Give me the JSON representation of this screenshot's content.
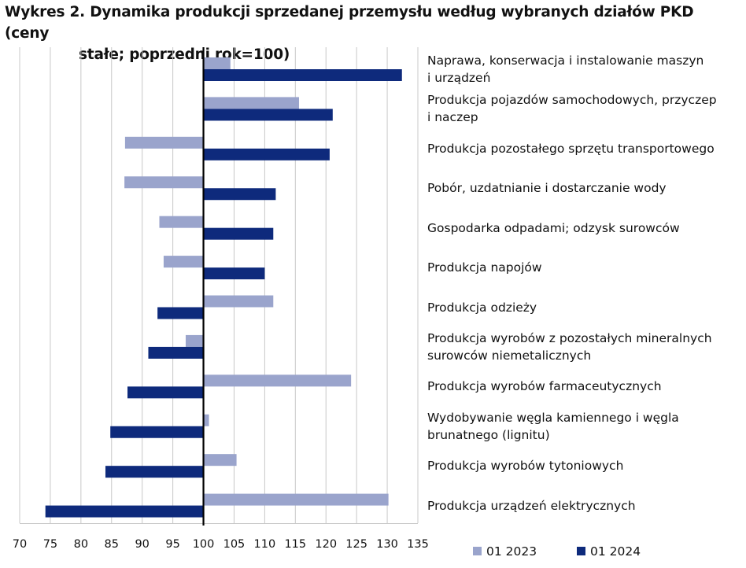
{
  "chart_data": {
    "type": "bar",
    "orientation": "horizontal",
    "title_line1": "Wykres 2. Dynamika produkcji sprzedanej przemysłu według wybranych działów PKD (ceny",
    "title_line2": "stałe; poprzedni rok=100)",
    "base_value": 100,
    "xlim": [
      70,
      135
    ],
    "xticks": [
      "70",
      "75",
      "80",
      "85",
      "90",
      "95",
      "100",
      "105",
      "110",
      "115",
      "120",
      "125",
      "130",
      "135"
    ],
    "categories": [
      [
        "Naprawa, konserwacja i instalowanie maszyn",
        "i urządzeń"
      ],
      [
        "Produkcja pojazdów samochodowych, przyczep",
        "i naczep"
      ],
      [
        "Produkcja pozostałego sprzętu transportowego"
      ],
      [
        "Pobór, uzdatnianie i dostarczanie wody"
      ],
      [
        "Gospodarka odpadami; odzysk surowców"
      ],
      [
        "Produkcja napojów"
      ],
      [
        "Produkcja odzieży"
      ],
      [
        "Produkcja wyrobów z pozostałych mineralnych",
        "surowców niemetalicznych"
      ],
      [
        "Produkcja wyrobów farmaceutycznych"
      ],
      [
        "Wydobywanie węgla kamiennego i węgla",
        "brunatnego (lignitu)"
      ],
      [
        "Produkcja wyrobów tytoniowych"
      ],
      [
        "Produkcja urządzeń elektrycznych"
      ]
    ],
    "series": [
      {
        "name": "01 2023",
        "color": "#9aa4cc",
        "values": [
          104.4,
          115.6,
          87.2,
          87.1,
          92.8,
          93.5,
          111.4,
          97.1,
          124.1,
          100.9,
          105.4,
          130.2
        ]
      },
      {
        "name": "01 2024",
        "color": "#0e2a7c",
        "values": [
          132.4,
          121.1,
          120.6,
          111.8,
          111.4,
          110.0,
          92.5,
          91.0,
          87.6,
          84.8,
          84.0,
          74.2
        ]
      }
    ],
    "legend_position": "bottom-right",
    "grid": "vertical"
  }
}
